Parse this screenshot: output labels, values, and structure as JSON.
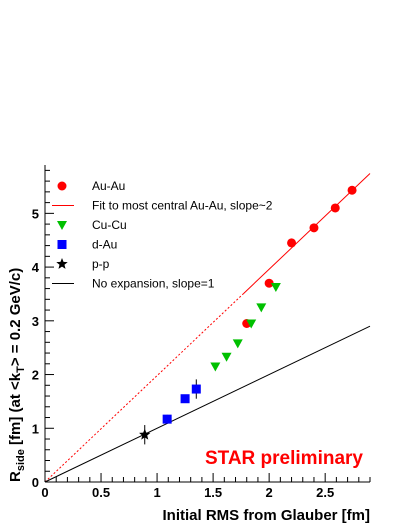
{
  "chart_data": {
    "type": "scatter",
    "xlabel": "Initial RMS from Glauber [fm]",
    "ylabel_parts": {
      "main": "R",
      "sub": "side",
      "rest": " [fm] (at <k",
      "sub2": "T",
      "tail": "> = 0.2 GeV/c)"
    },
    "annotation": "STAR preliminary",
    "annotation_color": "#ff0000",
    "xlim": [
      0,
      2.9
    ],
    "ylim": [
      0,
      5.9
    ],
    "x_ticks": [
      0,
      0.5,
      1,
      1.5,
      2,
      2.5
    ],
    "x_tick_labels": [
      "0",
      "0.5",
      "1",
      "1.5",
      "2",
      "2.5"
    ],
    "y_ticks": [
      0,
      1,
      2,
      3,
      4,
      5
    ],
    "y_tick_labels": [
      "0",
      "1",
      "2",
      "3",
      "4",
      "5"
    ],
    "legend_position": "top-left",
    "legend": [
      {
        "label": "Au-Au",
        "kind": "circle",
        "color": "#ff0000"
      },
      {
        "label": "Fit to most central Au-Au, slope~2",
        "kind": "line",
        "color": "#ff0000"
      },
      {
        "label": "Cu-Cu",
        "kind": "triangle-down",
        "color": "#00c000"
      },
      {
        "label": "d-Au",
        "kind": "square",
        "color": "#0000ff"
      },
      {
        "label": "p-p",
        "kind": "star",
        "color": "#000000"
      },
      {
        "label": "No expansion, slope=1",
        "kind": "line",
        "color": "#000000"
      }
    ],
    "series": [
      {
        "name": "Au-Au",
        "marker": "circle",
        "color": "#ff0000",
        "points": [
          {
            "x": 1.8,
            "y": 2.95
          },
          {
            "x": 2.0,
            "y": 3.7
          },
          {
            "x": 2.2,
            "y": 4.45
          },
          {
            "x": 2.4,
            "y": 4.73
          },
          {
            "x": 2.59,
            "y": 5.1
          },
          {
            "x": 2.74,
            "y": 5.43
          }
        ]
      },
      {
        "name": "Cu-Cu",
        "marker": "triangle-down",
        "color": "#00c000",
        "points": [
          {
            "x": 1.52,
            "y": 2.15
          },
          {
            "x": 1.62,
            "y": 2.33
          },
          {
            "x": 1.72,
            "y": 2.58
          },
          {
            "x": 1.84,
            "y": 2.95
          },
          {
            "x": 1.93,
            "y": 3.25
          },
          {
            "x": 2.06,
            "y": 3.63
          }
        ]
      },
      {
        "name": "d-Au",
        "marker": "square",
        "color": "#0000ff",
        "points": [
          {
            "x": 1.09,
            "y": 1.17,
            "err": 0.08
          },
          {
            "x": 1.25,
            "y": 1.55,
            "err": 0.07
          },
          {
            "x": 1.35,
            "y": 1.73,
            "err": 0.18
          }
        ]
      },
      {
        "name": "p-p",
        "marker": "star",
        "color": "#000000",
        "points": [
          {
            "x": 0.89,
            "y": 0.88,
            "err": 0.18
          }
        ]
      }
    ],
    "lines": [
      {
        "name": "Fit to most central Au-Au, slope~2",
        "color": "#ff0000",
        "slope": 1.98,
        "segments": [
          {
            "from": 0,
            "to": 1.77,
            "style": "dotted"
          },
          {
            "from": 1.77,
            "to": 2.9,
            "style": "solid"
          }
        ]
      },
      {
        "name": "No expansion, slope=1",
        "color": "#000000",
        "slope": 1.0,
        "segments": [
          {
            "from": 0,
            "to": 2.9,
            "style": "solid"
          }
        ]
      }
    ]
  }
}
